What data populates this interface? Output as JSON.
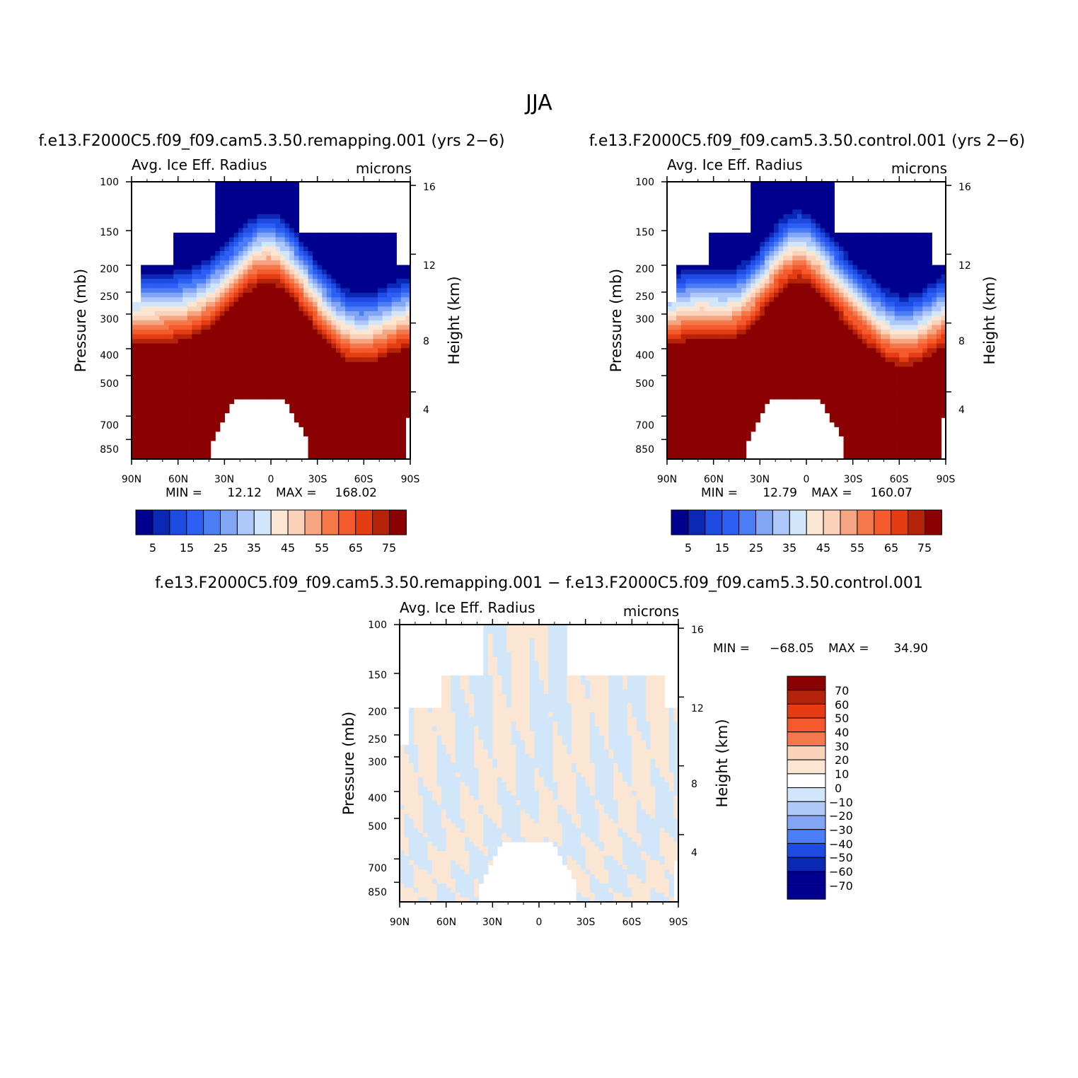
{
  "figure": {
    "title": "JJA"
  },
  "chart_data": [
    {
      "type": "heatmap",
      "subtitle": "f.e13.F2000C5.f09_f09.cam5.3.50.remapping.001 (yrs 2−6)",
      "left_title": "Avg. Ice Eff. Radius",
      "right_title": "microns",
      "ylabel": "Pressure (mb)",
      "ylabel2": "Height (km)",
      "x_ticks": [
        "90N",
        "60N",
        "30N",
        "0",
        "30S",
        "60S",
        "90S"
      ],
      "y_ticks": [
        "100",
        "150",
        "200",
        "250",
        "300",
        "400",
        "500",
        "700",
        "850"
      ],
      "y2_ticks": [
        "16",
        "12",
        "8",
        "4"
      ],
      "min_label": "MIN =",
      "min_value": "12.12",
      "max_label": "MAX =",
      "max_value": "168.02",
      "colorbar_labels": [
        "5",
        "15",
        "25",
        "35",
        "45",
        "55",
        "65",
        "75"
      ],
      "colorbar_colors": [
        "#00008f",
        "#0a28b4",
        "#1e4be1",
        "#2d5ff5",
        "#4b7df5",
        "#82a5f5",
        "#afc8fa",
        "#d2e6fa",
        "#fae6d2",
        "#fad2b9",
        "#f5a582",
        "#f5784b",
        "#f55a2d",
        "#e63c14",
        "#b4230a",
        "#8b0000"
      ],
      "fields": {
        "upper_boundary_lat": -8,
        "upper_boundary_pressure": 230,
        "max_radius": 168.02
      }
    },
    {
      "type": "heatmap",
      "subtitle": "f.e13.F2000C5.f09_f09.cam5.3.50.control.001 (yrs 2−6)",
      "left_title": "Avg. Ice Eff. Radius",
      "right_title": "microns",
      "ylabel": "Pressure (mb)",
      "ylabel2": "Height (km)",
      "x_ticks": [
        "90N",
        "60N",
        "30N",
        "0",
        "30S",
        "60S",
        "90S"
      ],
      "y_ticks": [
        "100",
        "150",
        "200",
        "250",
        "300",
        "400",
        "500",
        "700",
        "850"
      ],
      "y2_ticks": [
        "16",
        "12",
        "8",
        "4"
      ],
      "min_label": "MIN =",
      "min_value": "12.79",
      "max_label": "MAX =",
      "max_value": "160.07",
      "colorbar_labels": [
        "5",
        "15",
        "25",
        "35",
        "45",
        "55",
        "65",
        "75"
      ],
      "colorbar_colors": [
        "#00008f",
        "#0a28b4",
        "#1e4be1",
        "#2d5ff5",
        "#4b7df5",
        "#82a5f5",
        "#afc8fa",
        "#d2e6fa",
        "#fae6d2",
        "#fad2b9",
        "#f5a582",
        "#f5784b",
        "#f55a2d",
        "#e63c14",
        "#b4230a",
        "#8b0000"
      ],
      "fields": {
        "upper_boundary_lat": -8,
        "upper_boundary_pressure": 230,
        "max_radius": 160.07
      }
    },
    {
      "type": "heatmap",
      "subtitle": "f.e13.F2000C5.f09_f09.cam5.3.50.remapping.001 − f.e13.F2000C5.f09_f09.cam5.3.50.control.001",
      "left_title": "Avg. Ice Eff. Radius",
      "right_title": "microns",
      "ylabel": "Pressure (mb)",
      "ylabel2": "Height (km)",
      "x_ticks": [
        "90N",
        "60N",
        "30N",
        "0",
        "30S",
        "60S",
        "90S"
      ],
      "y_ticks": [
        "100",
        "150",
        "200",
        "250",
        "300",
        "400",
        "500",
        "700",
        "850"
      ],
      "y2_ticks": [
        "16",
        "12",
        "8",
        "4"
      ],
      "min_label": "MIN =",
      "min_value": "−68.05",
      "max_label": "MAX =",
      "max_value": "34.90",
      "colorbar_labels": [
        "70",
        "60",
        "50",
        "40",
        "30",
        "20",
        "10",
        "0",
        "−10",
        "−20",
        "−30",
        "−40",
        "−50",
        "−60",
        "−70"
      ],
      "colorbar_colors": [
        "#8b0000",
        "#b4230a",
        "#e63c14",
        "#f55a2d",
        "#f5784b",
        "#fad2b9",
        "#fae6d2",
        "#ffffff",
        "#d2e6fa",
        "#afc8fa",
        "#82a5f5",
        "#4b7df5",
        "#1e4be1",
        "#0a28b4",
        "#00008f",
        "#00008f"
      ]
    }
  ]
}
